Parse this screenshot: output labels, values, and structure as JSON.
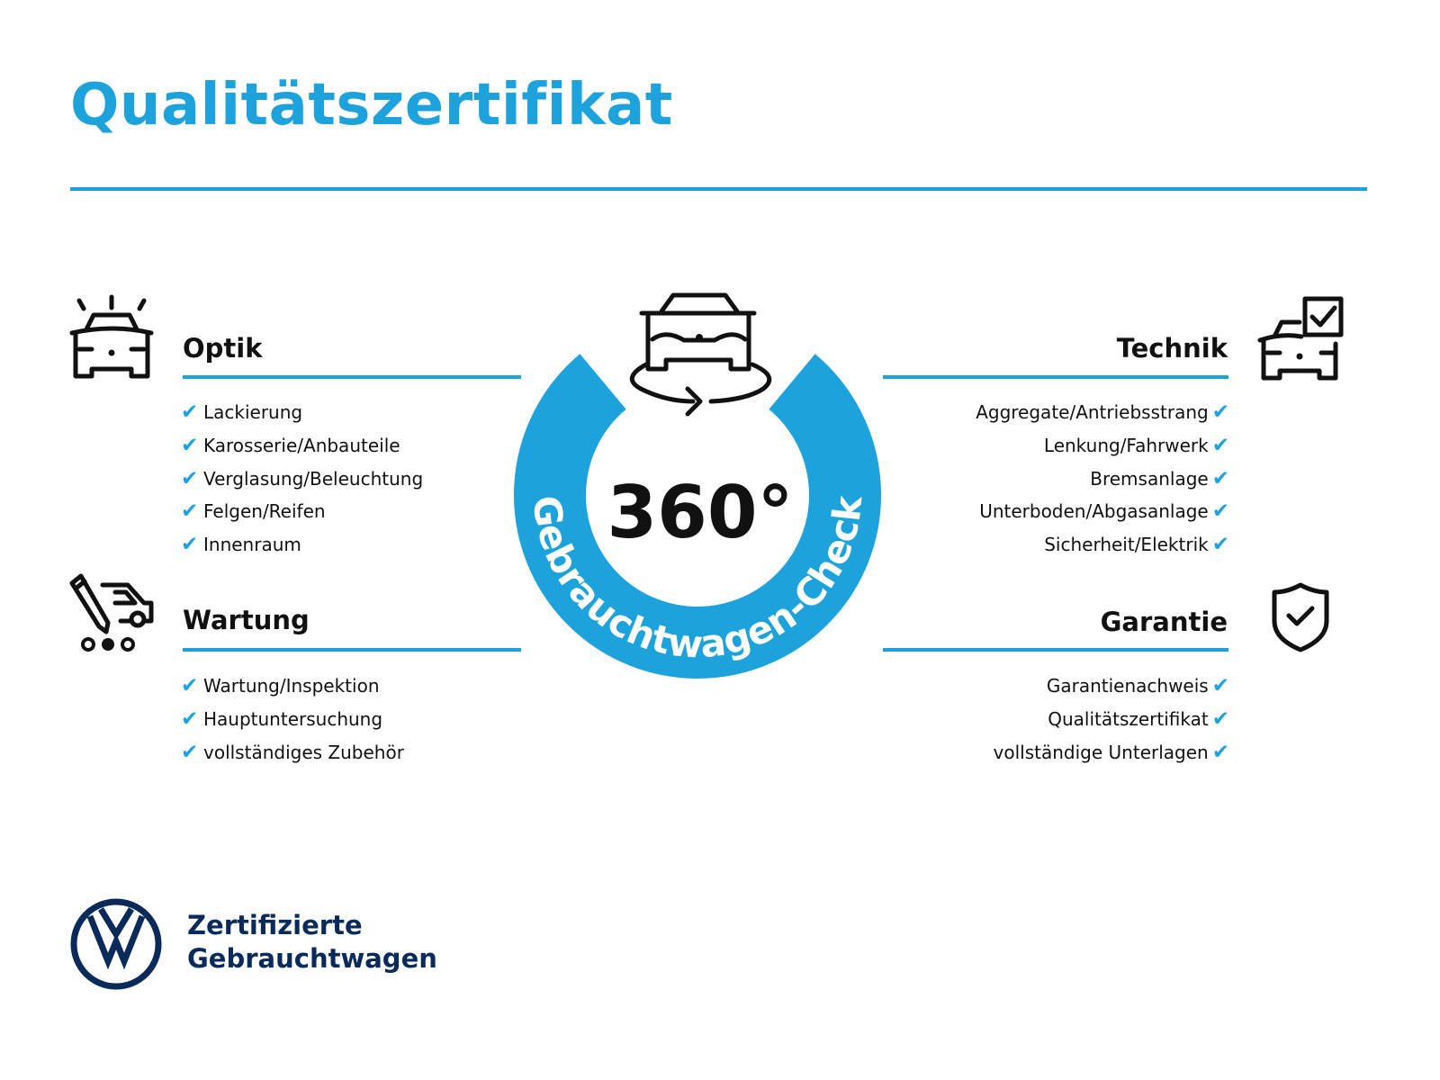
{
  "title": "Qualitätszertifikat",
  "center": {
    "degrees": "360°",
    "ring_text": "Gebrauchtwagen-Check"
  },
  "colors": {
    "accent": "#1ea2dc",
    "brand_navy": "#0a2a5a",
    "text": "#111111"
  },
  "sections": {
    "optik": {
      "heading": "Optik",
      "icon": "car-inspection-icon",
      "items": [
        "Lackierung",
        "Karosserie/Anbauteile",
        "Verglasung/Beleuchtung",
        "Felgen/Reifen",
        "Innenraum"
      ]
    },
    "wartung": {
      "heading": "Wartung",
      "icon": "service-van-icon",
      "items": [
        "Wartung/Inspektion",
        "Hauptuntersuchung",
        "vollständiges Zubehör"
      ]
    },
    "technik": {
      "heading": "Technik",
      "icon": "car-checkbox-icon",
      "items": [
        "Aggregate/Antriebsstrang",
        "Lenkung/Fahrwerk",
        "Bremsanlage",
        "Unterboden/Abgasanlage",
        "Sicherheit/Elektrik"
      ]
    },
    "garantie": {
      "heading": "Garantie",
      "icon": "shield-check-icon",
      "items": [
        "Garantienachweis",
        "Qualitätszertifikat",
        "vollständige Unterlagen"
      ]
    }
  },
  "check_mark": "✔",
  "footer": {
    "line1": "Zertifizierte",
    "line2": "Gebrauchtwagen",
    "logo": "VW"
  }
}
